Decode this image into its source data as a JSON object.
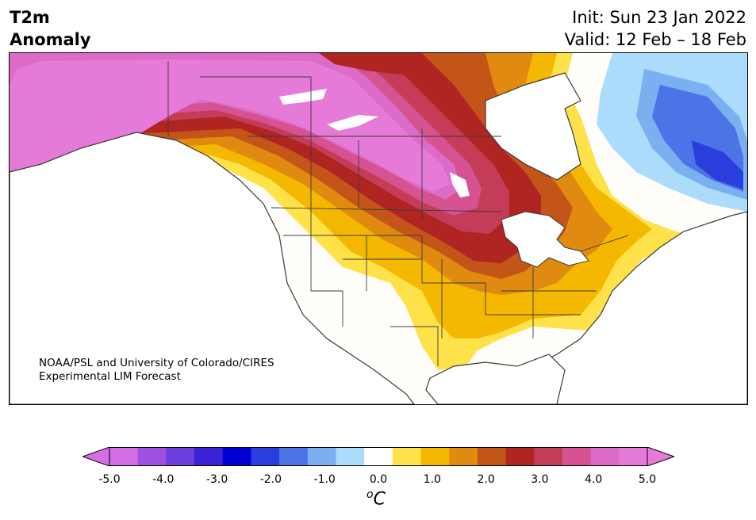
{
  "header": {
    "title_line1": "T2m",
    "title_line2": "Anomaly",
    "init_label": "Init: Sun 23 Jan 2022",
    "valid_label": "Valid: 12 Feb – 18 Feb"
  },
  "credit": {
    "line1": "NOAA/PSL and University of Colorado/CIRES",
    "line2": "Experimental LIM Forecast"
  },
  "colorbar": {
    "unit_symbol": "o",
    "unit_letter": "C",
    "ticks": [
      "-5.0",
      "-4.0",
      "-3.0",
      "-2.0",
      "-1.0",
      "0.0",
      "1.0",
      "2.0",
      "3.0",
      "4.0",
      "5.0"
    ],
    "colors": [
      "#d46ee6",
      "#a050e0",
      "#6a3ddc",
      "#3a22d6",
      "#0000d2",
      "#2a3ede",
      "#4c74e6",
      "#7ab0f0",
      "#acdcfc",
      "#ffffff",
      "#ffe14a",
      "#f5b800",
      "#e08a10",
      "#c45518",
      "#b02422",
      "#c43c58",
      "#d65290",
      "#dc6cc8",
      "#e67ad8"
    ],
    "under_color": "#d46ee6",
    "over_color": "#e67ad8"
  },
  "map_colors": {
    "land": "#fffefb",
    "water": "#ffffff",
    "anom_5": "#e67ad8",
    "anom_4_5": "#dc6cc8",
    "anom_4": "#d65290",
    "anom_3_5": "#c43c58",
    "anom_3": "#b02422",
    "anom_2_5": "#c45518",
    "anom_2": "#e08a10",
    "anom_1_5": "#f5b800",
    "anom_1": "#ffe14a",
    "cold_1": "#acdcfc",
    "cold_1_5": "#7ab0f0",
    "cold_2": "#4c74e6",
    "cold_2_5": "#2a3ede",
    "border": "#3a3a3a"
  }
}
